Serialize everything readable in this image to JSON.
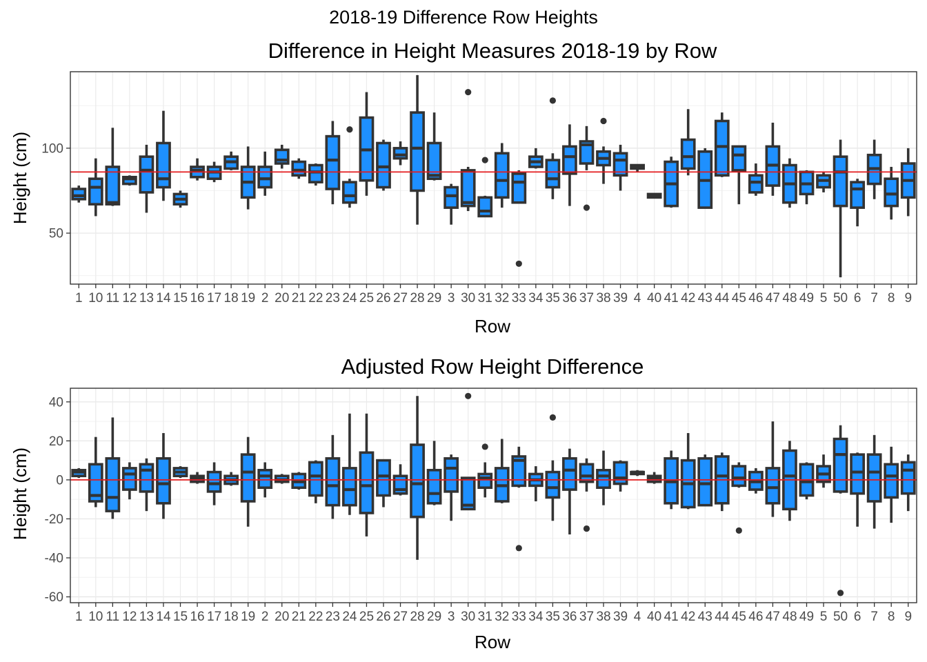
{
  "figure_title": "2018-19 Difference Row Heights",
  "chart_data": [
    {
      "type": "boxplot",
      "title": "Difference in Height Measures 2018-19 by Row",
      "xlabel": "Row",
      "ylabel": "Height (cm)",
      "ylim": [
        20,
        145
      ],
      "yticks": [
        50,
        100
      ],
      "reference_line": 86,
      "reference_color": "#e31a1c",
      "box_color": "#1e90ff",
      "outline_color": "#333333",
      "categories": [
        "1",
        "10",
        "11",
        "12",
        "13",
        "14",
        "15",
        "16",
        "17",
        "18",
        "19",
        "2",
        "20",
        "21",
        "22",
        "23",
        "24",
        "25",
        "26",
        "27",
        "28",
        "29",
        "3",
        "30",
        "31",
        "32",
        "33",
        "34",
        "35",
        "36",
        "37",
        "38",
        "39",
        "4",
        "40",
        "41",
        "42",
        "43",
        "44",
        "45",
        "46",
        "47",
        "48",
        "49",
        "5",
        "50",
        "6",
        "7",
        "8",
        "9"
      ],
      "boxes": [
        {
          "min": 68,
          "q1": 70,
          "median": 72,
          "q3": 76,
          "max": 78
        },
        {
          "min": 60,
          "q1": 67,
          "median": 77,
          "q3": 82,
          "max": 94
        },
        {
          "min": 66,
          "q1": 67,
          "median": 68,
          "q3": 89,
          "max": 112
        },
        {
          "min": 78,
          "q1": 79,
          "median": 82,
          "q3": 83,
          "max": 84
        },
        {
          "min": 62,
          "q1": 74,
          "median": 87,
          "q3": 95,
          "max": 102
        },
        {
          "min": 69,
          "q1": 77,
          "median": 82,
          "q3": 103,
          "max": 122
        },
        {
          "min": 65,
          "q1": 67,
          "median": 70,
          "q3": 73,
          "max": 75
        },
        {
          "min": 81,
          "q1": 83,
          "median": 87,
          "q3": 89,
          "max": 94
        },
        {
          "min": 80,
          "q1": 82,
          "median": 86,
          "q3": 89,
          "max": 92
        },
        {
          "min": 87,
          "q1": 88,
          "median": 92,
          "q3": 95,
          "max": 98
        },
        {
          "min": 64,
          "q1": 71,
          "median": 80,
          "q3": 89,
          "max": 101
        },
        {
          "min": 72,
          "q1": 77,
          "median": 82,
          "q3": 89,
          "max": 98
        },
        {
          "min": 88,
          "q1": 91,
          "median": 93,
          "q3": 99,
          "max": 102
        },
        {
          "min": 82,
          "q1": 84,
          "median": 87,
          "q3": 92,
          "max": 94
        },
        {
          "min": 78,
          "q1": 80,
          "median": 86,
          "q3": 90,
          "max": 91
        },
        {
          "min": 67,
          "q1": 76,
          "median": 93,
          "q3": 107,
          "max": 116
        },
        {
          "min": 65,
          "q1": 68,
          "median": 72,
          "q3": 80,
          "max": 82
        },
        {
          "min": 72,
          "q1": 81,
          "median": 99,
          "q3": 118,
          "max": 133
        },
        {
          "min": 75,
          "q1": 77,
          "median": 89,
          "q3": 103,
          "max": 105
        },
        {
          "min": 90,
          "q1": 94,
          "median": 96,
          "q3": 100,
          "max": 104
        },
        {
          "min": 55,
          "q1": 75,
          "median": 100,
          "q3": 121,
          "max": 143
        },
        {
          "min": 81,
          "q1": 82,
          "median": 84,
          "q3": 103,
          "max": 121
        },
        {
          "min": 55,
          "q1": 65,
          "median": 72,
          "q3": 77,
          "max": 79
        },
        {
          "min": 63,
          "q1": 66,
          "median": 68,
          "q3": 87,
          "max": 89
        },
        {
          "min": 60,
          "q1": 60,
          "median": 63,
          "q3": 71,
          "max": 72
        },
        {
          "min": 65,
          "q1": 71,
          "median": 81,
          "q3": 97,
          "max": 103
        },
        {
          "min": 68,
          "q1": 68,
          "median": 80,
          "q3": 85,
          "max": 87
        },
        {
          "min": 88,
          "q1": 89,
          "median": 92,
          "q3": 95,
          "max": 100
        },
        {
          "min": 70,
          "q1": 77,
          "median": 82,
          "q3": 93,
          "max": 97
        },
        {
          "min": 66,
          "q1": 85,
          "median": 95,
          "q3": 101,
          "max": 114
        },
        {
          "min": 87,
          "q1": 91,
          "median": 102,
          "q3": 104,
          "max": 113
        },
        {
          "min": 79,
          "q1": 90,
          "median": 94,
          "q3": 98,
          "max": 101
        },
        {
          "min": 75,
          "q1": 84,
          "median": 93,
          "q3": 97,
          "max": 102
        },
        {
          "min": 86,
          "q1": 88,
          "median": 89,
          "q3": 90,
          "max": 90
        },
        {
          "min": 71,
          "q1": 71,
          "median": 72,
          "q3": 73,
          "max": 73
        },
        {
          "min": 65,
          "q1": 66,
          "median": 79,
          "q3": 92,
          "max": 95
        },
        {
          "min": 84,
          "q1": 88,
          "median": 95,
          "q3": 105,
          "max": 123
        },
        {
          "min": 65,
          "q1": 65,
          "median": 81,
          "q3": 98,
          "max": 100
        },
        {
          "min": 83,
          "q1": 84,
          "median": 101,
          "q3": 116,
          "max": 121
        },
        {
          "min": 67,
          "q1": 87,
          "median": 96,
          "q3": 101,
          "max": 101
        },
        {
          "min": 72,
          "q1": 74,
          "median": 80,
          "q3": 84,
          "max": 91
        },
        {
          "min": 72,
          "q1": 78,
          "median": 90,
          "q3": 101,
          "max": 115
        },
        {
          "min": 65,
          "q1": 68,
          "median": 79,
          "q3": 90,
          "max": 94
        },
        {
          "min": 67,
          "q1": 73,
          "median": 79,
          "q3": 86,
          "max": 87
        },
        {
          "min": 74,
          "q1": 77,
          "median": 81,
          "q3": 84,
          "max": 86
        },
        {
          "min": 24,
          "q1": 66,
          "median": 86,
          "q3": 95,
          "max": 105
        },
        {
          "min": 54,
          "q1": 65,
          "median": 76,
          "q3": 80,
          "max": 82
        },
        {
          "min": 70,
          "q1": 79,
          "median": 88,
          "q3": 96,
          "max": 105
        },
        {
          "min": 58,
          "q1": 66,
          "median": 73,
          "q3": 82,
          "max": 89
        },
        {
          "min": 60,
          "q1": 71,
          "median": 81,
          "q3": 91,
          "max": 100
        }
      ],
      "outliers": [
        {
          "row": "24",
          "y": 111
        },
        {
          "row": "30",
          "y": 133
        },
        {
          "row": "31",
          "y": 93
        },
        {
          "row": "33",
          "y": 32
        },
        {
          "row": "35",
          "y": 128
        },
        {
          "row": "37",
          "y": 65
        },
        {
          "row": "38",
          "y": 116
        }
      ]
    },
    {
      "type": "boxplot",
      "title": "Adjusted Row Height Difference",
      "xlabel": "Row",
      "ylabel": "Height (cm)",
      "ylim": [
        -63,
        47
      ],
      "yticks": [
        -60,
        -40,
        -20,
        0,
        20,
        40
      ],
      "reference_line": 0,
      "reference_color": "#e31a1c",
      "box_color": "#1e90ff",
      "outline_color": "#333333",
      "categories": [
        "1",
        "10",
        "11",
        "12",
        "13",
        "14",
        "15",
        "16",
        "17",
        "18",
        "19",
        "2",
        "20",
        "21",
        "22",
        "23",
        "24",
        "25",
        "26",
        "27",
        "28",
        "29",
        "3",
        "30",
        "31",
        "32",
        "33",
        "34",
        "35",
        "36",
        "37",
        "38",
        "39",
        "4",
        "40",
        "41",
        "42",
        "43",
        "44",
        "45",
        "46",
        "47",
        "48",
        "49",
        "5",
        "50",
        "6",
        "7",
        "8",
        "9"
      ],
      "boxes": [
        {
          "min": 1,
          "q1": 2,
          "median": 4,
          "q3": 5,
          "max": 6
        },
        {
          "min": -14,
          "q1": -11,
          "median": -8,
          "q3": 8,
          "max": 22
        },
        {
          "min": -20,
          "q1": -16,
          "median": -9,
          "q3": 11,
          "max": 32
        },
        {
          "min": -10,
          "q1": -5,
          "median": 3,
          "q3": 6,
          "max": 9
        },
        {
          "min": -16,
          "q1": -6,
          "median": 5,
          "q3": 8,
          "max": 11
        },
        {
          "min": -20,
          "q1": -12,
          "median": -2,
          "q3": 11,
          "max": 24
        },
        {
          "min": 1,
          "q1": 2,
          "median": 4,
          "q3": 6,
          "max": 7
        },
        {
          "min": -2,
          "q1": -1,
          "median": 1,
          "q3": 2,
          "max": 4
        },
        {
          "min": -13,
          "q1": -6,
          "median": -2,
          "q3": 4,
          "max": 9
        },
        {
          "min": -3,
          "q1": -2,
          "median": 0,
          "q3": 2,
          "max": 4
        },
        {
          "min": -24,
          "q1": -11,
          "median": 4,
          "q3": 13,
          "max": 22
        },
        {
          "min": -9,
          "q1": -4,
          "median": 2,
          "q3": 5,
          "max": 9
        },
        {
          "min": -2,
          "q1": -1,
          "median": 0,
          "q3": 2,
          "max": 3
        },
        {
          "min": -5,
          "q1": -4,
          "median": -1,
          "q3": 3,
          "max": 4
        },
        {
          "min": -12,
          "q1": -8,
          "median": 2,
          "q3": 9,
          "max": 10
        },
        {
          "min": -20,
          "q1": -13,
          "median": -3,
          "q3": 11,
          "max": 23
        },
        {
          "min": -18,
          "q1": -13,
          "median": -5,
          "q3": 6,
          "max": 34
        },
        {
          "min": -29,
          "q1": -17,
          "median": -3,
          "q3": 14,
          "max": 34
        },
        {
          "min": -14,
          "q1": -8,
          "median": 2,
          "q3": 10,
          "max": 10
        },
        {
          "min": -8,
          "q1": -7,
          "median": -5,
          "q3": 2,
          "max": 8
        },
        {
          "min": -41,
          "q1": -19,
          "median": -2,
          "q3": 18,
          "max": 43
        },
        {
          "min": -13,
          "q1": -12,
          "median": -7,
          "q3": 5,
          "max": 20
        },
        {
          "min": -21,
          "q1": -6,
          "median": 6,
          "q3": 11,
          "max": 13
        },
        {
          "min": -15,
          "q1": -15,
          "median": -13,
          "q3": 1,
          "max": 1
        },
        {
          "min": -9,
          "q1": -4,
          "median": 1,
          "q3": 3,
          "max": 9
        },
        {
          "min": -12,
          "q1": -11,
          "median": -3,
          "q3": 6,
          "max": 21
        },
        {
          "min": -4,
          "q1": -3,
          "median": 10,
          "q3": 12,
          "max": 17
        },
        {
          "min": -11,
          "q1": -3,
          "median": 0,
          "q3": 3,
          "max": 7
        },
        {
          "min": -21,
          "q1": -9,
          "median": -4,
          "q3": 4,
          "max": 10
        },
        {
          "min": -28,
          "q1": -5,
          "median": 5,
          "q3": 11,
          "max": 16
        },
        {
          "min": -6,
          "q1": -1,
          "median": 2,
          "q3": 8,
          "max": 11
        },
        {
          "min": -13,
          "q1": -4,
          "median": 2,
          "q3": 5,
          "max": 15
        },
        {
          "min": -6,
          "q1": -2,
          "median": 1,
          "q3": 9,
          "max": 10
        },
        {
          "min": 2,
          "q1": 3,
          "median": 4,
          "q3": 4,
          "max": 5
        },
        {
          "min": -2,
          "q1": -1,
          "median": 1,
          "q3": 2,
          "max": 4
        },
        {
          "min": -15,
          "q1": -12,
          "median": -1,
          "q3": 11,
          "max": 15
        },
        {
          "min": -15,
          "q1": -14,
          "median": -2,
          "q3": 10,
          "max": 24
        },
        {
          "min": -13,
          "q1": -13,
          "median": -2,
          "q3": 11,
          "max": 13
        },
        {
          "min": -16,
          "q1": -12,
          "median": 2,
          "q3": 12,
          "max": 14
        },
        {
          "min": -4,
          "q1": -3,
          "median": 1,
          "q3": 7,
          "max": 9
        },
        {
          "min": -7,
          "q1": -5,
          "median": -1,
          "q3": 4,
          "max": 6
        },
        {
          "min": -19,
          "q1": -12,
          "median": -4,
          "q3": 6,
          "max": 30
        },
        {
          "min": -21,
          "q1": -15,
          "median": 2,
          "q3": 15,
          "max": 20
        },
        {
          "min": -10,
          "q1": -8,
          "median": -1,
          "q3": 8,
          "max": 9
        },
        {
          "min": -4,
          "q1": -1,
          "median": 3,
          "q3": 7,
          "max": 13
        },
        {
          "min": -7,
          "q1": -6,
          "median": 13,
          "q3": 21,
          "max": 28
        },
        {
          "min": -24,
          "q1": -7,
          "median": 4,
          "q3": 13,
          "max": 14
        },
        {
          "min": -25,
          "q1": -11,
          "median": 4,
          "q3": 13,
          "max": 23
        },
        {
          "min": -22,
          "q1": -9,
          "median": 2,
          "q3": 8,
          "max": 17
        },
        {
          "min": -16,
          "q1": -7,
          "median": 5,
          "q3": 9,
          "max": 13
        }
      ],
      "outliers": [
        {
          "row": "30",
          "y": 43
        },
        {
          "row": "31",
          "y": 17
        },
        {
          "row": "33",
          "y": -35
        },
        {
          "row": "35",
          "y": 32
        },
        {
          "row": "37",
          "y": -25
        },
        {
          "row": "45",
          "y": -26
        },
        {
          "row": "50",
          "y": -58
        }
      ]
    }
  ]
}
